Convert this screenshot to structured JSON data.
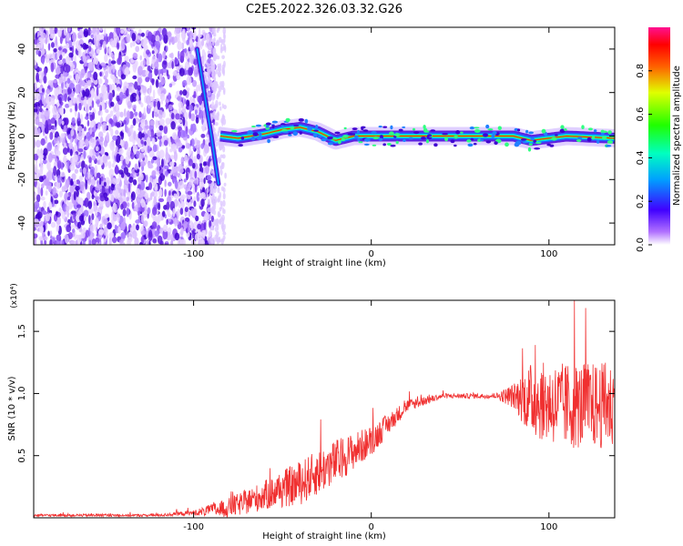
{
  "title": "C2E5.2022.326.03.32.G26",
  "chart_data": [
    {
      "type": "heatmap",
      "xlabel": "Height of straight line (km)",
      "ylabel": "Frequency (Hz)",
      "xlim": [
        -190,
        137
      ],
      "ylim": [
        -50,
        50
      ],
      "x_ticks": [
        -100,
        0,
        100
      ],
      "y_ticks": [
        -40,
        -20,
        0,
        20,
        40
      ],
      "colorbar": {
        "label": "Normalized spectral amplitude",
        "range": [
          0,
          1
        ],
        "ticks": [
          0.0,
          0.2,
          0.4,
          0.6,
          0.8
        ]
      },
      "ridge": [
        {
          "x": -85,
          "y": 0
        },
        {
          "x": -75,
          "y": -1
        },
        {
          "x": -60,
          "y": 1
        },
        {
          "x": -50,
          "y": 3
        },
        {
          "x": -40,
          "y": 4
        },
        {
          "x": -30,
          "y": 2
        },
        {
          "x": -20,
          "y": -2
        },
        {
          "x": -10,
          "y": 0
        },
        {
          "x": 0,
          "y": 0
        },
        {
          "x": 60,
          "y": 0
        },
        {
          "x": 80,
          "y": 0
        },
        {
          "x": 90,
          "y": -2
        },
        {
          "x": 110,
          "y": 0
        },
        {
          "x": 137,
          "y": -1
        }
      ],
      "drifting_trace": [
        {
          "x": -98,
          "y": 40
        },
        {
          "x": -95,
          "y": 25
        },
        {
          "x": -90,
          "y": 0
        },
        {
          "x": -86,
          "y": -22
        }
      ]
    },
    {
      "type": "line",
      "xlabel": "Height of straight line (km)",
      "ylabel": "SNR (10 * v/v)",
      "y_multiplier": "(x10⁴)",
      "xlim": [
        -190,
        137
      ],
      "ylim": [
        0,
        1.75
      ],
      "x_ticks": [
        -100,
        0,
        100
      ],
      "y_ticks": [
        0.5,
        1.0,
        1.5
      ],
      "color": "#f03030",
      "envelope": [
        {
          "x": -190,
          "mean": 0.02,
          "noise": 0.01
        },
        {
          "x": -120,
          "mean": 0.02,
          "noise": 0.01
        },
        {
          "x": -100,
          "mean": 0.04,
          "noise": 0.02
        },
        {
          "x": -80,
          "mean": 0.08,
          "noise": 0.08
        },
        {
          "x": -60,
          "mean": 0.18,
          "noise": 0.12
        },
        {
          "x": -40,
          "mean": 0.28,
          "noise": 0.18
        },
        {
          "x": -20,
          "mean": 0.45,
          "noise": 0.18
        },
        {
          "x": 0,
          "mean": 0.62,
          "noise": 0.12
        },
        {
          "x": 20,
          "mean": 0.9,
          "noise": 0.05
        },
        {
          "x": 40,
          "mean": 0.98,
          "noise": 0.02
        },
        {
          "x": 70,
          "mean": 0.98,
          "noise": 0.02
        },
        {
          "x": 80,
          "mean": 0.98,
          "noise": 0.1
        },
        {
          "x": 90,
          "mean": 0.95,
          "noise": 0.3
        },
        {
          "x": 110,
          "mean": 0.9,
          "noise": 0.35
        },
        {
          "x": 137,
          "mean": 0.9,
          "noise": 0.35
        }
      ]
    }
  ]
}
